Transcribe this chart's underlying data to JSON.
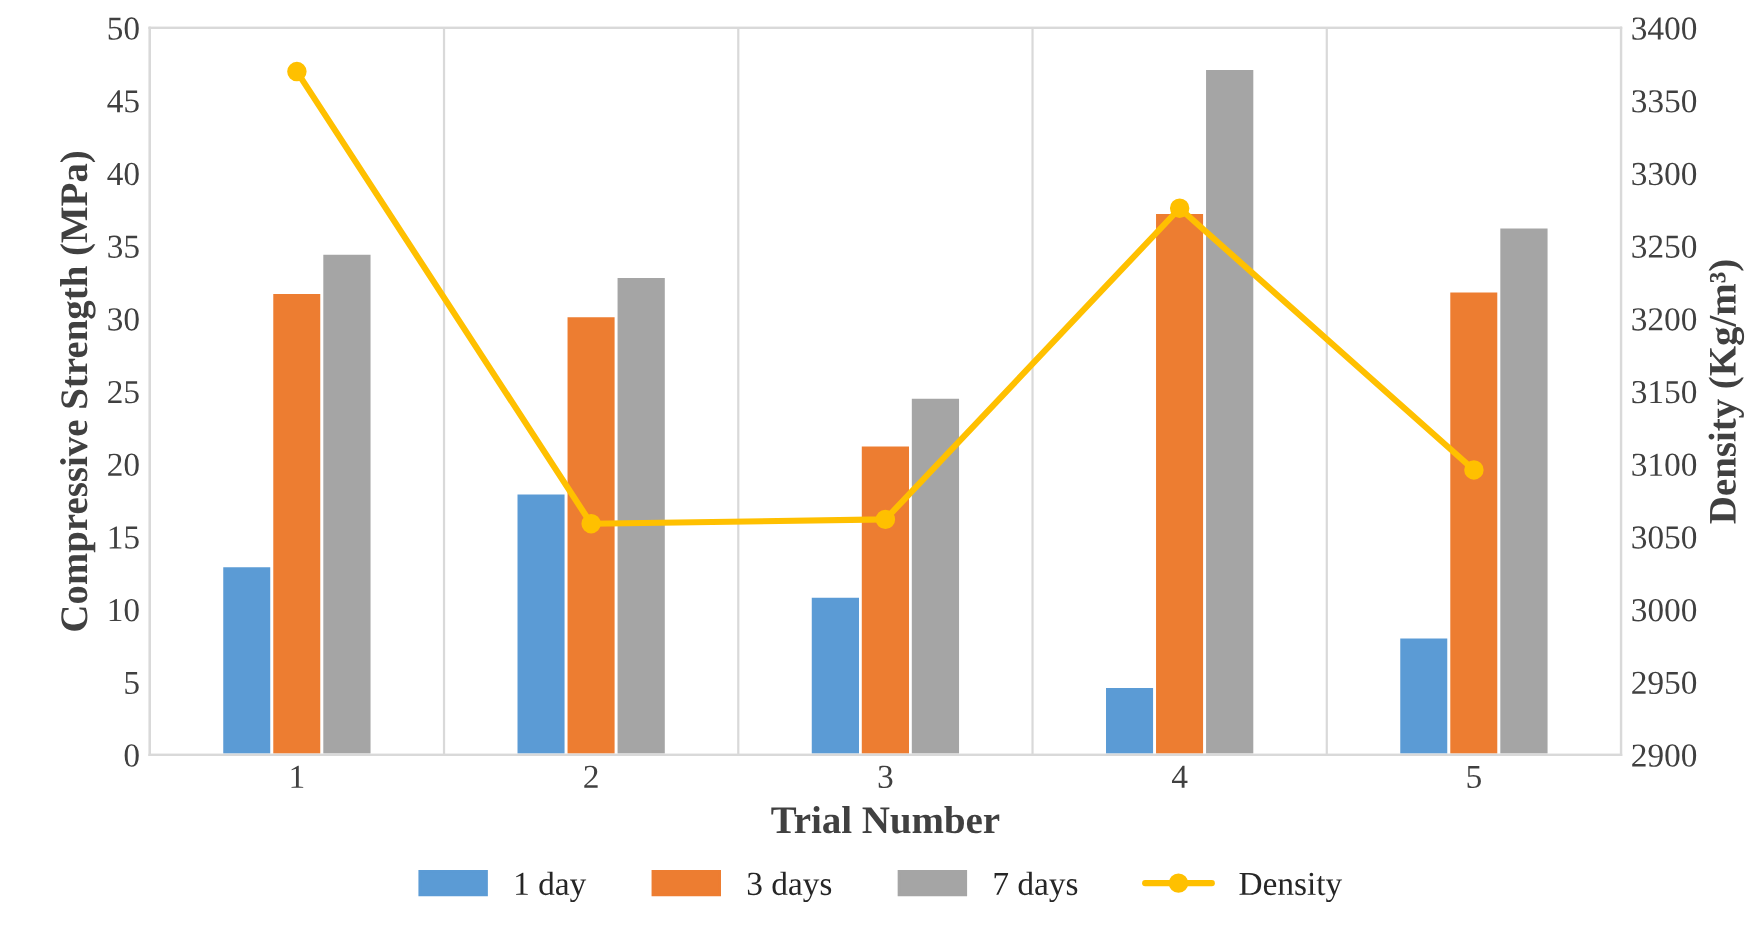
{
  "chart_data": {
    "type": "bar",
    "xlabel": "Trial Number",
    "ylabel": "Compressive Strength (MPa)",
    "y2label": "Density (Kg/m³)",
    "categories": [
      "1",
      "2",
      "3",
      "4",
      "5"
    ],
    "series": [
      {
        "name": "1 day",
        "color": "#5b9bd5",
        "values": [
          13.0,
          18.0,
          10.9,
          4.7,
          8.1
        ]
      },
      {
        "name": "3 days",
        "color": "#ed7d31",
        "values": [
          31.8,
          30.2,
          21.3,
          37.3,
          31.9
        ]
      },
      {
        "name": "7 days",
        "color": "#a5a5a5",
        "values": [
          34.5,
          32.9,
          24.6,
          47.2,
          36.3
        ]
      },
      {
        "name": "Density",
        "color": "#ffc000",
        "type": "line",
        "axis": "y2",
        "marker": "circle",
        "values": [
          3370,
          3059,
          3062,
          3276,
          3096
        ]
      }
    ],
    "ylim": [
      0,
      50
    ],
    "yticks": [
      0,
      5,
      10,
      15,
      20,
      25,
      30,
      35,
      40,
      45,
      50
    ],
    "y2lim": [
      2900,
      3400
    ],
    "y2ticks": [
      2900,
      2950,
      3000,
      3050,
      3100,
      3150,
      3200,
      3250,
      3300,
      3350,
      3400
    ],
    "grid": "x",
    "legend": "bottom"
  }
}
